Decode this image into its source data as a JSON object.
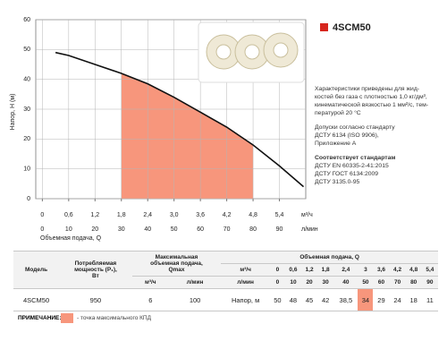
{
  "chart_data": {
    "type": "line",
    "y_label": "Напор, H (м)",
    "x_label": "Объемная подача, Q",
    "x_unit": "м³/ч",
    "x2_unit": "л/мин",
    "x": [
      0.3,
      0.6,
      1.2,
      1.8,
      2.4,
      3.0,
      3.6,
      4.2,
      4.8,
      5.4,
      5.95
    ],
    "series": [
      {
        "name": "4SCM50",
        "color": "#111111",
        "values": [
          49,
          48,
          45,
          42,
          38.5,
          34,
          29,
          24,
          18,
          11,
          4
        ]
      }
    ],
    "xlim": [
      -0.15,
      6.0
    ],
    "xticks": [
      0,
      {
        "value": 0.6,
        "label": "0,6"
      },
      {
        "value": 1.2,
        "label": "1,2"
      },
      {
        "value": 1.8,
        "label": "1,8"
      },
      {
        "value": 2.4,
        "label": "2,4"
      },
      {
        "value": 3.0,
        "label": "3,0"
      },
      {
        "value": 3.6,
        "label": "3,6"
      },
      {
        "value": 4.2,
        "label": "4,2"
      },
      {
        "value": 4.8,
        "label": "4,8"
      },
      {
        "value": 5.4,
        "label": "5,4"
      }
    ],
    "x2lim": [
      -2.5,
      100
    ],
    "x2ticks": [
      0,
      10,
      20,
      30,
      40,
      50,
      60,
      70,
      80,
      90
    ],
    "ylim": [
      0,
      60
    ],
    "yticks": [
      0,
      10,
      20,
      30,
      40,
      50,
      60
    ],
    "grid": true,
    "highlight_range": [
      1.8,
      4.8
    ],
    "highlight_color": "#f7967c"
  },
  "header": {
    "model": "4SCM50",
    "color": "#d7261e"
  },
  "description": {
    "paragraph1": [
      "Характеристики приведены для жид-",
      "костей без газа с плотностью 1,0 кг/дм³,",
      "кинематической вязкостью 1 мм²/с, тем-",
      "пературой 20 °С"
    ],
    "paragraph2": [
      "Допуски согласно стандарту",
      "ДСТУ 6134 (ISO 9906),",
      "Приложение А"
    ],
    "standards_title": "Соответствует стандартам",
    "standards": [
      "ДСТУ EN 60335-2-41:2015",
      "ДСТУ ГОСТ 6134:2009",
      "ДСТУ 3135.0-95"
    ]
  },
  "table": {
    "headers": {
      "model": "Модель",
      "power": [
        "Потребляемая",
        "мощность (P₁),",
        "Вт"
      ],
      "qmax": [
        "Максимальная",
        "объемная подача,",
        "Qmax"
      ],
      "flow": "Объемная подача, Q"
    },
    "qmax_units": [
      "м³/ч",
      "л/мин"
    ],
    "unit_rows": [
      {
        "unit": "м³/ч",
        "values": [
          "0",
          "0,6",
          "1,2",
          "1,8",
          "2,4",
          "3",
          "3,6",
          "4,2",
          "4,8",
          "5,4"
        ]
      },
      {
        "unit": "л/мин",
        "values": [
          "0",
          "10",
          "20",
          "30",
          "40",
          "50",
          "60",
          "70",
          "80",
          "90"
        ]
      }
    ],
    "row": {
      "model": "4SCM50",
      "power": "950",
      "qmax": [
        "6",
        "100"
      ],
      "label": "Напор, м",
      "values": [
        "50",
        "48",
        "45",
        "42",
        "38,5",
        "34",
        "29",
        "24",
        "18",
        "11"
      ]
    },
    "highlight_index": 5
  },
  "note": {
    "title": "ПРИМЕЧАНИЕ:",
    "text": "- точка максимального КПД"
  }
}
